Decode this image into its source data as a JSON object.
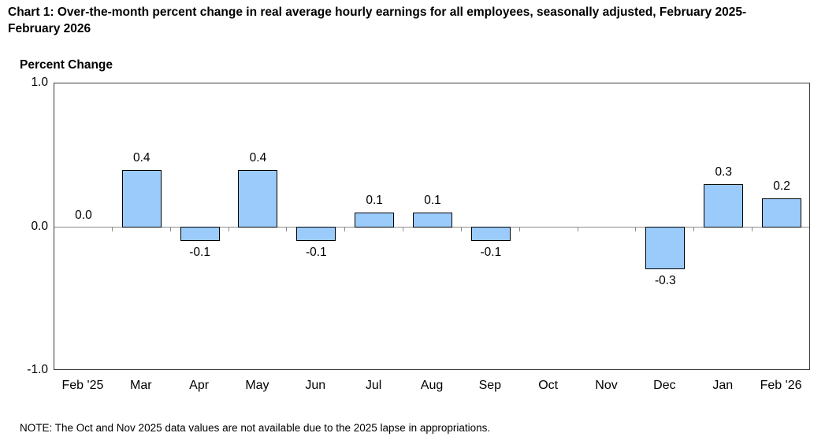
{
  "title": "Chart 1: Over-the-month percent change in real average hourly earnings for all employees, seasonally adjusted, February 2025-February 2026",
  "note": "NOTE: The Oct and Nov 2025 data values are not available due to the 2025 lapse in appropriations.",
  "chart_data": {
    "type": "bar",
    "title": "Chart 1: Over-the-month percent change in real average hourly earnings for all employees, seasonally adjusted, February 2025-February 2026",
    "ylabel": "Percent Change",
    "xlabel": "",
    "ylim": [
      -1.0,
      1.0
    ],
    "y_ticks": [
      1.0,
      0.0,
      -1.0
    ],
    "y_tick_labels": [
      "1.0",
      "0.0",
      "-1.0"
    ],
    "grid": false,
    "legend_position": "none",
    "categories": [
      "Feb '25",
      "Mar",
      "Apr",
      "May",
      "Jun",
      "Jul",
      "Aug",
      "Sep",
      "Oct",
      "Nov",
      "Dec",
      "Jan",
      "Feb '26"
    ],
    "values": [
      0.0,
      0.4,
      -0.1,
      0.4,
      -0.1,
      0.1,
      0.1,
      -0.1,
      null,
      null,
      -0.3,
      0.3,
      0.2
    ],
    "data_labels": [
      "0.0",
      "0.4",
      "-0.1",
      "0.4",
      "-0.1",
      "0.1",
      "0.1",
      "-0.1",
      "",
      "",
      "-0.3",
      "0.3",
      "0.2"
    ],
    "missing_categories": [
      "Oct",
      "Nov"
    ],
    "bar_fill_color": "#9bcbfb",
    "bar_border_color": "#000000",
    "zero_line_color": "#8c8c8c",
    "frame_color": "#3a3a3a",
    "annotation_note": "NOTE: The Oct and Nov 2025 data values are not available due to the 2025 lapse in appropriations."
  }
}
